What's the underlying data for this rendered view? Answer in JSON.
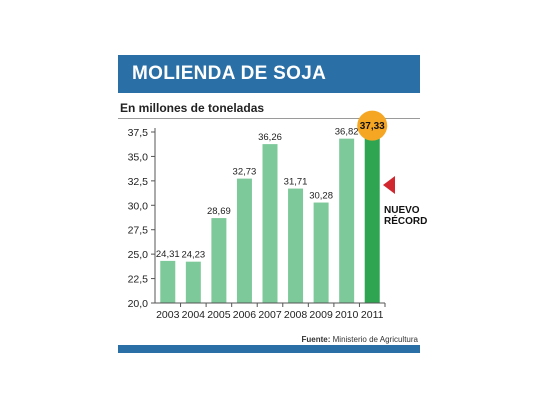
{
  "header": {
    "title": "MOLIENDA DE SOJA",
    "subtitle": "En millones de toneladas"
  },
  "source": {
    "label": "Fuente:",
    "text": "Ministerio de Agricultura"
  },
  "annotation": {
    "line1": "NUEVO",
    "line2": "RÉCORD"
  },
  "colors": {
    "brand": "#2a6fa6",
    "bar": "#7ec99a",
    "highlight_bar": "#2fa552",
    "badge": "#f5a623",
    "arrow": "#d0282e"
  },
  "chart_data": {
    "type": "bar",
    "title": "MOLIENDA DE SOJA",
    "subtitle": "En millones de toneladas",
    "categories": [
      "2003",
      "2004",
      "2005",
      "2006",
      "2007",
      "2008",
      "2009",
      "2010",
      "2011"
    ],
    "values": [
      24.31,
      24.23,
      28.69,
      32.73,
      36.26,
      31.71,
      30.28,
      36.82,
      37.33
    ],
    "value_labels": [
      "24,31",
      "24,23",
      "28,69",
      "32,73",
      "36,26",
      "31,71",
      "30,28",
      "36,82",
      "37,33"
    ],
    "ylim": [
      20,
      37.5
    ],
    "yticks": [
      20,
      22.5,
      25,
      27.5,
      30,
      32.5,
      35,
      37.5
    ],
    "ytick_labels": [
      "20,0",
      "22,5",
      "25,0",
      "27,5",
      "30,0",
      "32,5",
      "35,0",
      "37,5"
    ],
    "highlight_category": "2011",
    "xlabel": "",
    "ylabel": "",
    "grid": false,
    "legend": "none"
  }
}
